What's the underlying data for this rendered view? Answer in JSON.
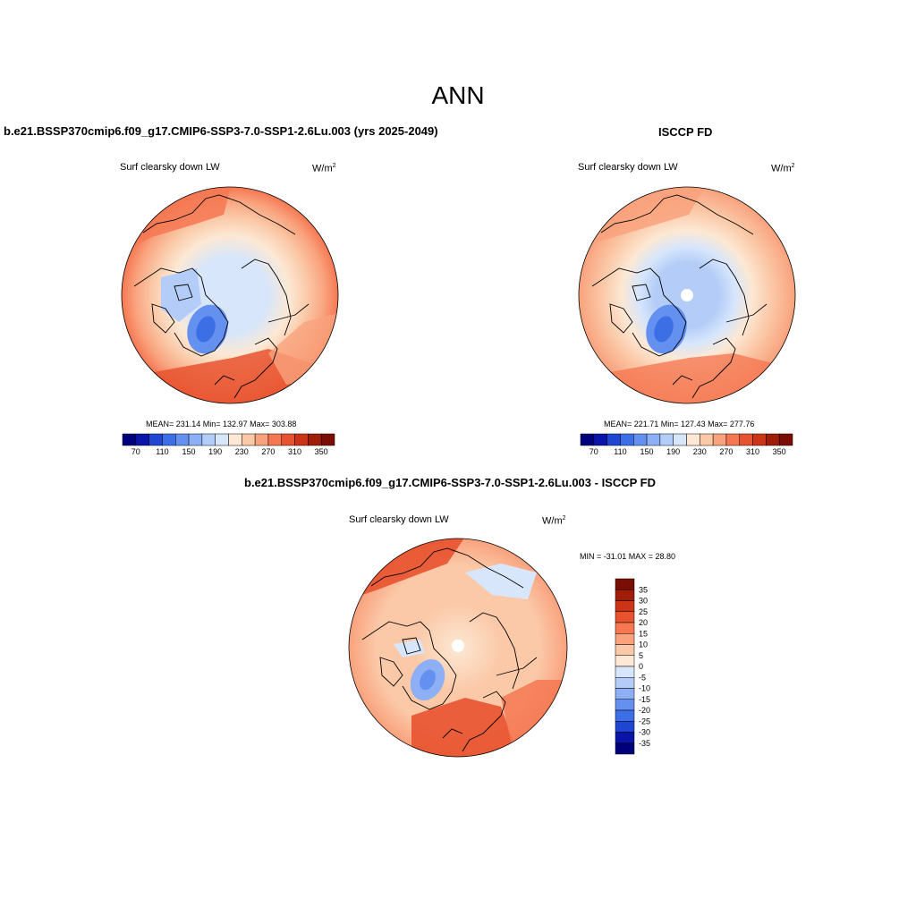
{
  "title": "ANN",
  "panels": [
    {
      "id": "model",
      "header": "b.e21.BSSP370cmip6.f09_g17.CMIP6-SSP3-7.0-SSP1-2.6Lu.003 (yrs 2025-2049)",
      "variable": "Surf clearsky down LW",
      "units_base": "W/m",
      "units_exp": "2",
      "stats": "MEAN= 231.14  Min= 132.97  Max= 303.88",
      "colorbar_labels": [
        "70",
        "110",
        "150",
        "190",
        "230",
        "270",
        "310",
        "350"
      ]
    },
    {
      "id": "obs",
      "header": "ISCCP FD",
      "variable": "Surf clearsky down LW",
      "units_base": "W/m",
      "units_exp": "2",
      "stats": "MEAN= 221.71  Min= 127.43  Max= 277.76",
      "colorbar_labels": [
        "70",
        "110",
        "150",
        "190",
        "230",
        "270",
        "310",
        "350"
      ]
    },
    {
      "id": "diff",
      "header": "b.e21.BSSP370cmip6.f09_g17.CMIP6-SSP3-7.0-SSP1-2.6Lu.003 - ISCCP FD",
      "variable": "Surf clearsky down LW",
      "units_base": "W/m",
      "units_exp": "2",
      "stats": "MIN = -31.01 MAX =  28.80",
      "colorbar_labels": [
        "35",
        "30",
        "25",
        "20",
        "15",
        "10",
        "5",
        "0",
        "-5",
        "-10",
        "-15",
        "-20",
        "-25",
        "-30",
        "-35"
      ]
    }
  ],
  "colors": {
    "abs_scale": [
      "#00007a",
      "#0a14a8",
      "#1e46d2",
      "#3c6ee6",
      "#6490f0",
      "#8caff5",
      "#b4cdf8",
      "#d7e6fb",
      "#fce8d4",
      "#fbc9a8",
      "#f9a27d",
      "#f57852",
      "#e8522f",
      "#cc3417",
      "#a01d0a",
      "#7a0d04"
    ],
    "diff_scale": [
      "#7a0d04",
      "#a01d0a",
      "#cc3417",
      "#e8522f",
      "#f57852",
      "#f9a27d",
      "#fbc9a8",
      "#fce8d4",
      "#d7e6fb",
      "#b4cdf8",
      "#8caff5",
      "#6490f0",
      "#3c6ee6",
      "#1e46d2",
      "#0a14a8",
      "#00007a"
    ]
  }
}
